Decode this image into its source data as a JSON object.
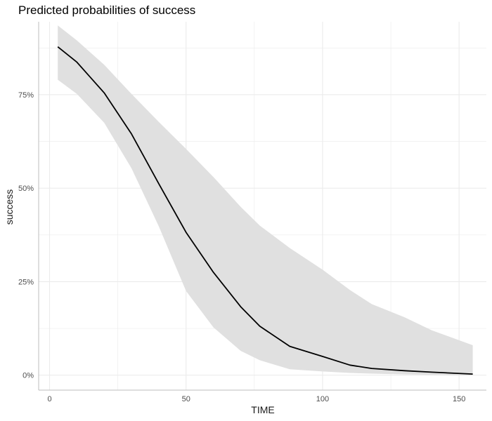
{
  "chart_data": {
    "type": "line",
    "title": "Predicted probabilities of success",
    "xlabel": "TIME",
    "ylabel": "success",
    "xlim": [
      -4,
      160
    ],
    "ylim": [
      -0.04,
      0.945
    ],
    "x_ticks": [
      0,
      50,
      100,
      150
    ],
    "x_tick_labels": [
      "0",
      "50",
      "100",
      "150"
    ],
    "y_ticks": [
      0,
      0.25,
      0.5,
      0.75
    ],
    "y_tick_labels": [
      "0%",
      "25%",
      "50%",
      "75%"
    ],
    "grid": true,
    "legend": "none",
    "series": [
      {
        "x": [
          3,
          10,
          20,
          30,
          40,
          50,
          60,
          70,
          77,
          88,
          100,
          110,
          118,
          130,
          140,
          155
        ],
        "y": [
          0.878,
          0.837,
          0.755,
          0.645,
          0.512,
          0.382,
          0.275,
          0.183,
          0.131,
          0.077,
          0.05,
          0.027,
          0.018,
          0.012,
          0.008,
          0.003
        ],
        "lower": [
          0.79,
          0.752,
          0.675,
          0.553,
          0.398,
          0.225,
          0.128,
          0.065,
          0.04,
          0.016,
          0.01,
          0.006,
          0.004,
          0.002,
          0.001,
          0.0
        ],
        "upper": [
          0.935,
          0.895,
          0.83,
          0.752,
          0.677,
          0.605,
          0.53,
          0.45,
          0.4,
          0.34,
          0.282,
          0.228,
          0.19,
          0.155,
          0.12,
          0.08
        ]
      }
    ],
    "colors": {
      "line": "#000000",
      "ribbon": "#e0e0e0",
      "grid": "#ebebeb",
      "axis": "#bdbdbd"
    }
  }
}
